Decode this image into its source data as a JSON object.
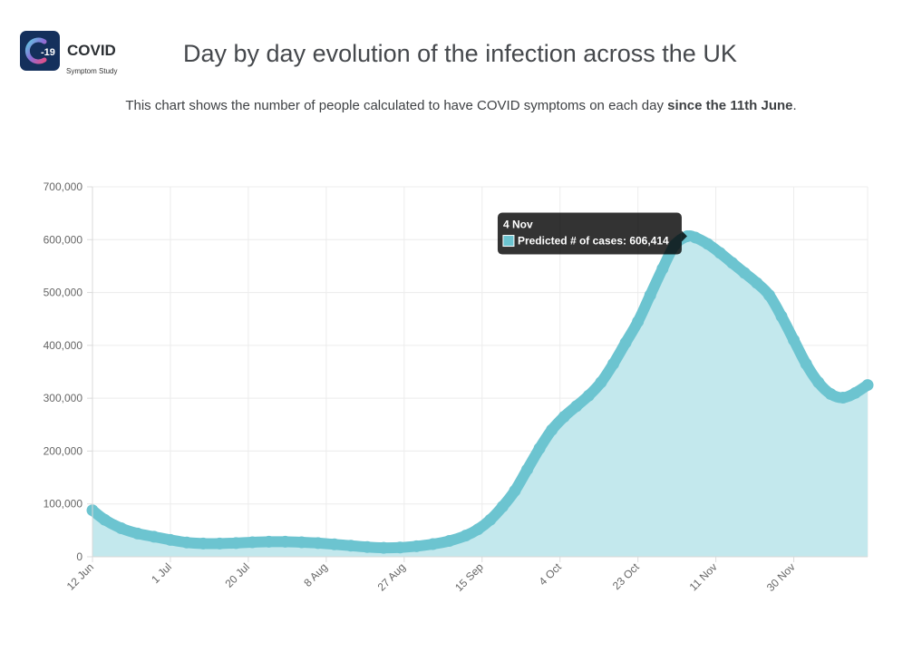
{
  "header": {
    "logo_text": "COVID",
    "logo_sub": "Symptom Study",
    "logo_badge": "-19",
    "title": "Day by day evolution of the infection across the UK",
    "subtitle_prefix": "This chart shows the number of people calculated to have COVID symptoms on each day ",
    "subtitle_bold": "since the 11th June",
    "subtitle_suffix": "."
  },
  "chart_data": {
    "type": "area",
    "series": [
      {
        "name": "Predicted # of cases",
        "color": "#6cc4d0",
        "fill": "#c3e8ed",
        "points": [
          [
            "12 Jun",
            88000
          ],
          [
            "15 Jun",
            70000
          ],
          [
            "19 Jun",
            54000
          ],
          [
            "23 Jun",
            44000
          ],
          [
            "27 Jun",
            38000
          ],
          [
            "1 Jul",
            32000
          ],
          [
            "5 Jul",
            27000
          ],
          [
            "9 Jul",
            25000
          ],
          [
            "13 Jul",
            25000
          ],
          [
            "17 Jul",
            26000
          ],
          [
            "21 Jul",
            27500
          ],
          [
            "25 Jul",
            28500
          ],
          [
            "29 Jul",
            28500
          ],
          [
            "2 Aug",
            27500
          ],
          [
            "6 Aug",
            26000
          ],
          [
            "10 Aug",
            23500
          ],
          [
            "14 Aug",
            21000
          ],
          [
            "18 Aug",
            18500
          ],
          [
            "22 Aug",
            17000
          ],
          [
            "26 Aug",
            17500
          ],
          [
            "30 Aug",
            20000
          ],
          [
            "3 Sep",
            24000
          ],
          [
            "7 Sep",
            30000
          ],
          [
            "11 Sep",
            40000
          ],
          [
            "14 Sep",
            52000
          ],
          [
            "17 Sep",
            70000
          ],
          [
            "20 Sep",
            95000
          ],
          [
            "23 Sep",
            125000
          ],
          [
            "26 Sep",
            165000
          ],
          [
            "29 Sep",
            205000
          ],
          [
            "2 Oct",
            240000
          ],
          [
            "5 Oct",
            265000
          ],
          [
            "8 Oct",
            285000
          ],
          [
            "11 Oct",
            305000
          ],
          [
            "14 Oct",
            330000
          ],
          [
            "17 Oct",
            365000
          ],
          [
            "20 Oct",
            405000
          ],
          [
            "23 Oct",
            445000
          ],
          [
            "26 Oct",
            495000
          ],
          [
            "29 Oct",
            545000
          ],
          [
            "1 Nov",
            590000
          ],
          [
            "4 Nov",
            606414
          ],
          [
            "6 Nov",
            604000
          ],
          [
            "9 Nov",
            592000
          ],
          [
            "12 Nov",
            575000
          ],
          [
            "15 Nov",
            556000
          ],
          [
            "18 Nov",
            537000
          ],
          [
            "21 Nov",
            518000
          ],
          [
            "24 Nov",
            495000
          ],
          [
            "27 Nov",
            455000
          ],
          [
            "30 Nov",
            410000
          ],
          [
            "3 Dec",
            365000
          ],
          [
            "6 Dec",
            330000
          ],
          [
            "9 Dec",
            308000
          ],
          [
            "12 Dec",
            301000
          ],
          [
            "15 Dec",
            310000
          ],
          [
            "18 Dec",
            325000
          ]
        ]
      }
    ],
    "x_ticks": [
      "12 Jun",
      "1 Jul",
      "20 Jul",
      "8 Aug",
      "27 Aug",
      "15 Sep",
      "4 Oct",
      "23 Oct",
      "11 Nov",
      "30 Nov"
    ],
    "y_ticks": [
      "0",
      "100,000",
      "200,000",
      "300,000",
      "400,000",
      "500,000",
      "600,000",
      "700,000"
    ],
    "x_range": [
      "12 Jun",
      "18 Dec"
    ],
    "ylim": [
      0,
      700000
    ],
    "grid": true,
    "tooltip": {
      "title": "4 Nov",
      "label": "Predicted # of cases: 606,414",
      "at": "4 Nov"
    }
  }
}
